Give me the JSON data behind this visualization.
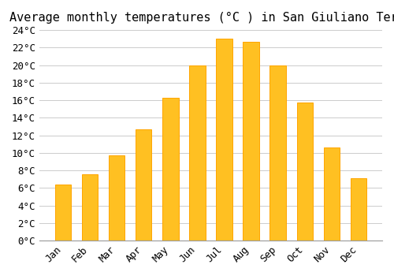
{
  "title": "Average monthly temperatures (°C ) in San Giuliano Terme",
  "months": [
    "Jan",
    "Feb",
    "Mar",
    "Apr",
    "May",
    "Jun",
    "Jul",
    "Aug",
    "Sep",
    "Oct",
    "Nov",
    "Dec"
  ],
  "values": [
    6.4,
    7.6,
    9.7,
    12.7,
    16.3,
    20.0,
    23.0,
    22.7,
    20.0,
    15.7,
    10.6,
    7.1
  ],
  "bar_color": "#FFC022",
  "bar_edge_color": "#FFA500",
  "background_color": "#FFFFFF",
  "grid_color": "#CCCCCC",
  "ylim": [
    0,
    24
  ],
  "ytick_step": 2,
  "title_fontsize": 11,
  "tick_fontsize": 9,
  "font_family": "monospace"
}
